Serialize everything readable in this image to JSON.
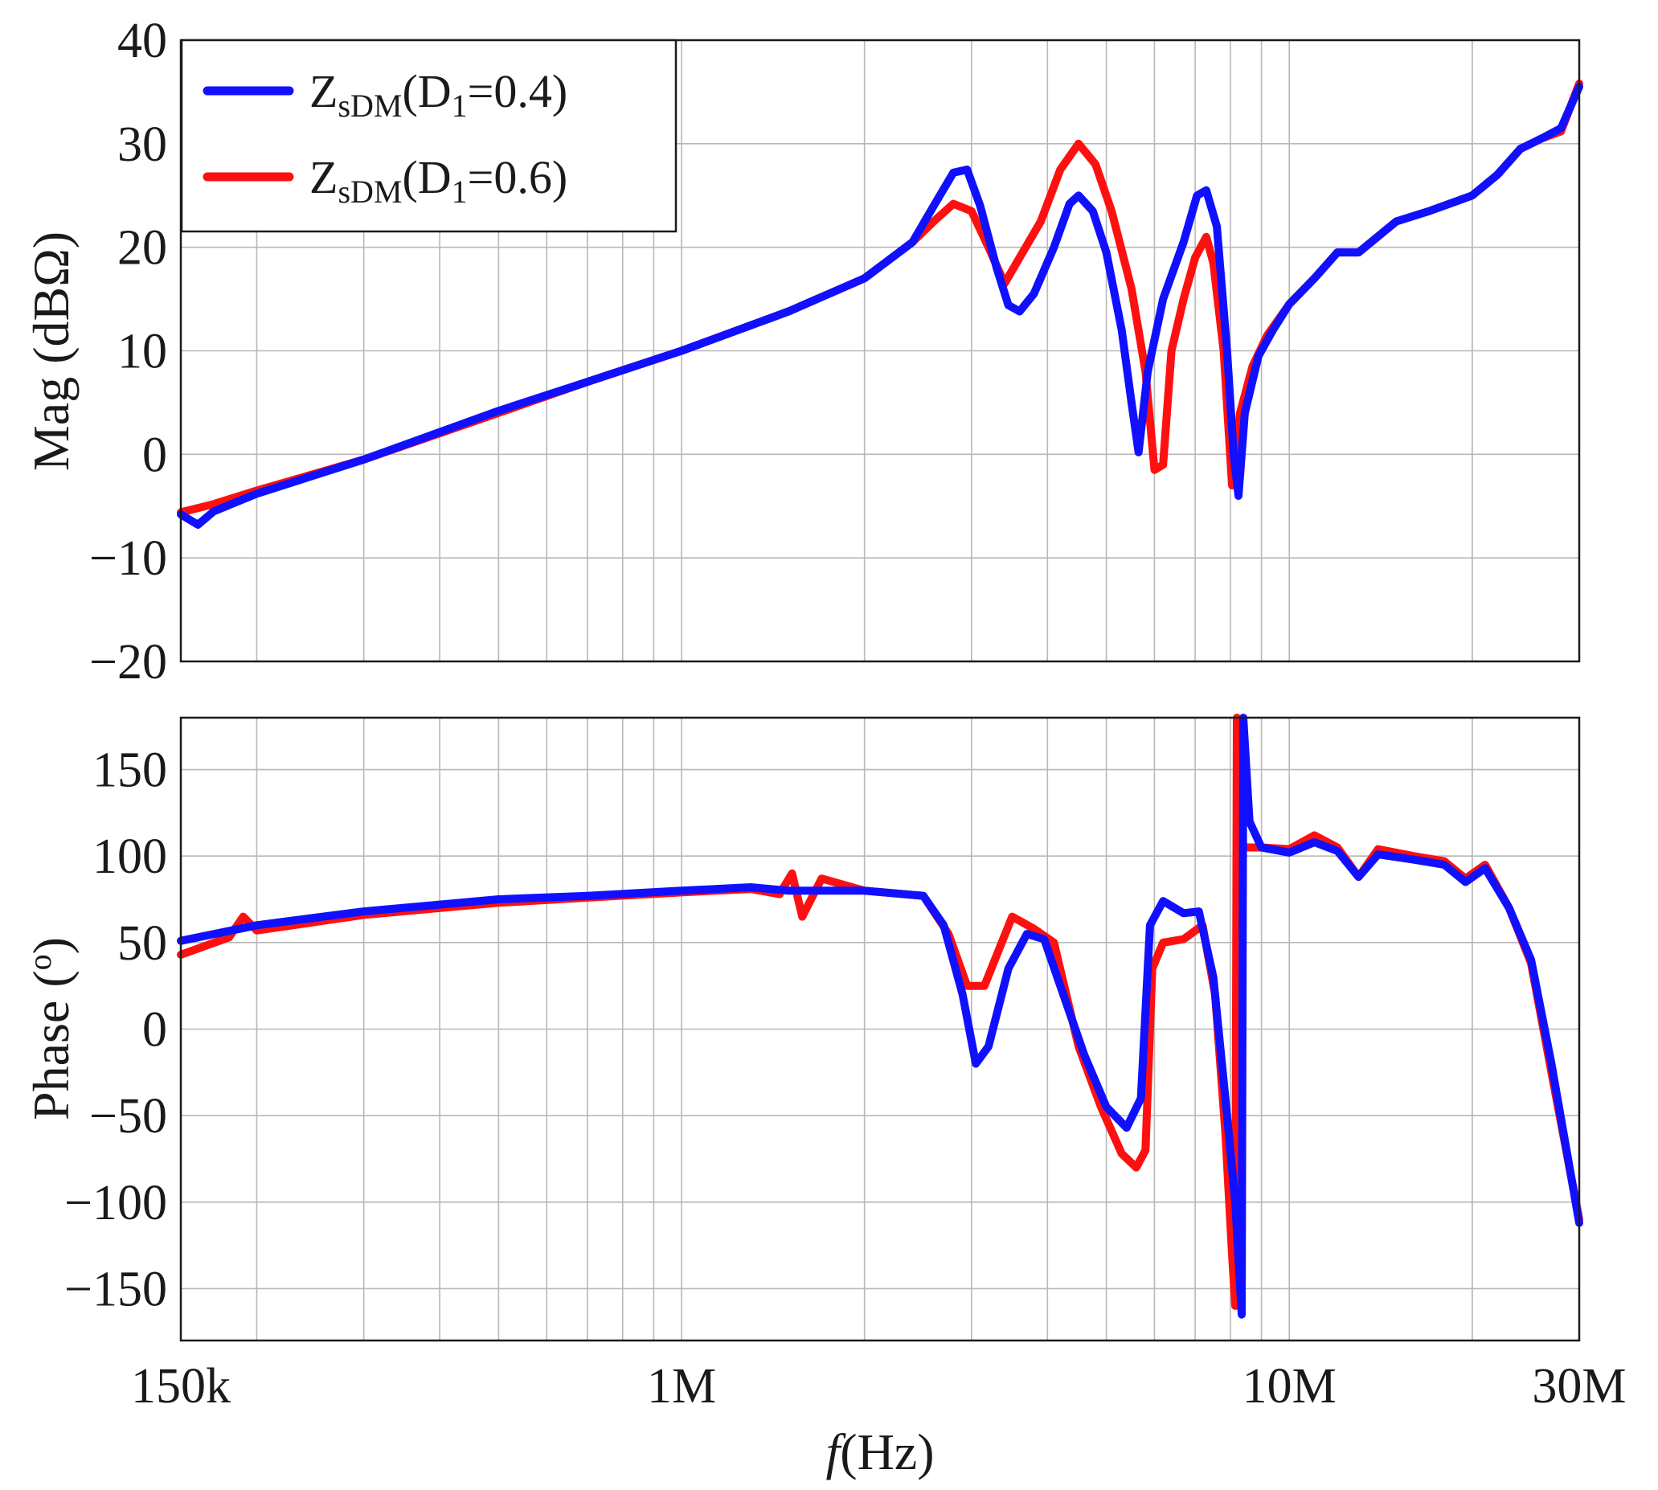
{
  "chart_data": [
    {
      "type": "line",
      "panel": "magnitude",
      "ylabel": "Mag (dBΩ)",
      "xscale": "log",
      "xlim": [
        150000,
        30000000
      ],
      "ylim": [
        -20,
        40
      ],
      "yticks": [
        -20,
        -10,
        0,
        10,
        20,
        30,
        40
      ],
      "ytick_labels": [
        "−20",
        "−10",
        "0",
        "10",
        "20",
        "30",
        "40"
      ],
      "grid": true,
      "legend": {
        "placement": "top-left",
        "entries": [
          {
            "main": "Z",
            "sub": "sDM",
            "open": "(D",
            "sub2": "1",
            "rest": "=0.4)",
            "color": "#1010ff"
          },
          {
            "main": "Z",
            "sub": "sDM",
            "open": "(D",
            "sub2": "1",
            "rest": "=0.6)",
            "color": "#ff1010"
          }
        ]
      },
      "series": [
        {
          "color": "#1010ff",
          "points": [
            [
              150000,
              -5.8
            ],
            [
              160000,
              -6.8
            ],
            [
              170000,
              -5.5
            ],
            [
              200000,
              -3.8
            ],
            [
              300000,
              -0.5
            ],
            [
              500000,
              4.2
            ],
            [
              700000,
              7.0
            ],
            [
              1000000,
              10.0
            ],
            [
              1500000,
              13.8
            ],
            [
              2000000,
              17.0
            ],
            [
              2400000,
              20.5
            ],
            [
              2600000,
              24
            ],
            [
              2800000,
              27.2
            ],
            [
              2950000,
              27.5
            ],
            [
              3100000,
              24
            ],
            [
              3300000,
              18
            ],
            [
              3450000,
              14.4
            ],
            [
              3600000,
              13.8
            ],
            [
              3800000,
              15.5
            ],
            [
              4100000,
              20
            ],
            [
              4350000,
              24.2
            ],
            [
              4500000,
              25.0
            ],
            [
              4750000,
              23.5
            ],
            [
              5000000,
              19.5
            ],
            [
              5300000,
              12
            ],
            [
              5500000,
              5
            ],
            [
              5650000,
              0.2
            ],
            [
              5850000,
              8
            ],
            [
              6200000,
              15
            ],
            [
              6700000,
              20.5
            ],
            [
              7050000,
              25
            ],
            [
              7300000,
              25.5
            ],
            [
              7600000,
              22
            ],
            [
              7900000,
              10
            ],
            [
              8100000,
              0
            ],
            [
              8250000,
              -4
            ],
            [
              8450000,
              4
            ],
            [
              8900000,
              9.5
            ],
            [
              9400000,
              12
            ],
            [
              10000000,
              14.5
            ],
            [
              11000000,
              17
            ],
            [
              12000000,
              19.5
            ],
            [
              13000000,
              19.5
            ],
            [
              15000000,
              22.5
            ],
            [
              17000000,
              23.5
            ],
            [
              20000000,
              25
            ],
            [
              22000000,
              27
            ],
            [
              24000000,
              29.5
            ],
            [
              26000000,
              30.5
            ],
            [
              28000000,
              31.5
            ],
            [
              30000000,
              35.5
            ]
          ]
        },
        {
          "color": "#ff1010",
          "points": [
            [
              150000,
              -5.6
            ],
            [
              170000,
              -4.8
            ],
            [
              200000,
              -3.5
            ],
            [
              300000,
              -0.5
            ],
            [
              500000,
              4.0
            ],
            [
              700000,
              7.0
            ],
            [
              1000000,
              10.0
            ],
            [
              1500000,
              13.8
            ],
            [
              2000000,
              17.0
            ],
            [
              2400000,
              20.5
            ],
            [
              2600000,
              22.5
            ],
            [
              2800000,
              24.2
            ],
            [
              3000000,
              23.5
            ],
            [
              3200000,
              20
            ],
            [
              3400000,
              16.5
            ],
            [
              3600000,
              19
            ],
            [
              3900000,
              22.5
            ],
            [
              4200000,
              27.5
            ],
            [
              4500000,
              30
            ],
            [
              4800000,
              28
            ],
            [
              5100000,
              23.5
            ],
            [
              5500000,
              16
            ],
            [
              5800000,
              8
            ],
            [
              6000000,
              -1.5
            ],
            [
              6200000,
              -1
            ],
            [
              6400000,
              10
            ],
            [
              6700000,
              15
            ],
            [
              7000000,
              19
            ],
            [
              7300000,
              21
            ],
            [
              7500000,
              18.5
            ],
            [
              7800000,
              10
            ],
            [
              8050000,
              -3
            ],
            [
              8300000,
              4
            ],
            [
              8700000,
              8.5
            ],
            [
              9200000,
              11.5
            ],
            [
              10000000,
              14.5
            ],
            [
              11000000,
              17
            ],
            [
              12000000,
              19.5
            ],
            [
              13000000,
              19.5
            ],
            [
              15000000,
              22.5
            ],
            [
              17000000,
              23.5
            ],
            [
              20000000,
              25
            ],
            [
              22000000,
              27
            ],
            [
              24000000,
              29.5
            ],
            [
              26000000,
              30.5
            ],
            [
              28000000,
              31.2
            ],
            [
              30000000,
              35.8
            ]
          ]
        }
      ]
    },
    {
      "type": "line",
      "panel": "phase",
      "ylabel": "Phase (°)",
      "ylabel_main": "Phase (",
      "ylabel_sup": "o",
      "ylabel_close": ")",
      "xlabel_italic": "f",
      "xlabel_rest": "(Hz)",
      "xscale": "log",
      "xlim": [
        150000,
        30000000
      ],
      "ylim": [
        -180,
        180
      ],
      "yticks": [
        -150,
        -100,
        -50,
        0,
        50,
        100,
        150
      ],
      "ytick_labels": [
        "−150",
        "−100",
        "−50",
        "0",
        "50",
        "100",
        "150"
      ],
      "xtick_values": [
        150000,
        1000000,
        10000000,
        30000000
      ],
      "xtick_labels": [
        "150k",
        "1M",
        "10M",
        "30M"
      ],
      "grid": true,
      "series": [
        {
          "color": "#1010ff",
          "points": [
            [
              150000,
              51
            ],
            [
              200000,
              60
            ],
            [
              300000,
              68
            ],
            [
              500000,
              75
            ],
            [
              700000,
              77
            ],
            [
              1000000,
              80
            ],
            [
              1300000,
              82
            ],
            [
              1500000,
              80
            ],
            [
              2000000,
              80
            ],
            [
              2500000,
              77
            ],
            [
              2700000,
              60
            ],
            [
              2900000,
              20
            ],
            [
              3050000,
              -20
            ],
            [
              3200000,
              -10
            ],
            [
              3450000,
              35
            ],
            [
              3700000,
              55
            ],
            [
              3950000,
              52
            ],
            [
              4200000,
              25
            ],
            [
              4600000,
              -15
            ],
            [
              5000000,
              -45
            ],
            [
              5400000,
              -57
            ],
            [
              5700000,
              -40
            ],
            [
              5900000,
              60
            ],
            [
              6200000,
              74
            ],
            [
              6700000,
              67
            ],
            [
              7100000,
              68
            ],
            [
              7500000,
              30
            ],
            [
              7900000,
              -50
            ],
            [
              8150000,
              -100
            ],
            [
              8350000,
              -165
            ],
            [
              8400000,
              180
            ],
            [
              8600000,
              120
            ],
            [
              9000000,
              105
            ],
            [
              10000000,
              102
            ],
            [
              11000000,
              108
            ],
            [
              12000000,
              103
            ],
            [
              13000000,
              88
            ],
            [
              14000000,
              101
            ],
            [
              16000000,
              98
            ],
            [
              18000000,
              95
            ],
            [
              19500000,
              85
            ],
            [
              21000000,
              93
            ],
            [
              23000000,
              70
            ],
            [
              25000000,
              40
            ],
            [
              27000000,
              -20
            ],
            [
              30000000,
              -112
            ]
          ]
        },
        {
          "color": "#ff1010",
          "points": [
            [
              150000,
              43
            ],
            [
              180000,
              53
            ],
            [
              190000,
              65
            ],
            [
              200000,
              57
            ],
            [
              300000,
              66
            ],
            [
              500000,
              73
            ],
            [
              700000,
              76
            ],
            [
              1000000,
              79
            ],
            [
              1300000,
              81
            ],
            [
              1450000,
              78
            ],
            [
              1520000,
              90
            ],
            [
              1580000,
              65
            ],
            [
              1700000,
              87
            ],
            [
              2000000,
              80
            ],
            [
              2500000,
              77
            ],
            [
              2750000,
              55
            ],
            [
              2950000,
              25
            ],
            [
              3150000,
              25
            ],
            [
              3500000,
              65
            ],
            [
              3800000,
              58
            ],
            [
              4100000,
              50
            ],
            [
              4500000,
              -10
            ],
            [
              4900000,
              -45
            ],
            [
              5300000,
              -72
            ],
            [
              5600000,
              -80
            ],
            [
              5800000,
              -70
            ],
            [
              5950000,
              35
            ],
            [
              6200000,
              50
            ],
            [
              6700000,
              52
            ],
            [
              7200000,
              60
            ],
            [
              7550000,
              20
            ],
            [
              7850000,
              -60
            ],
            [
              8050000,
              -130
            ],
            [
              8150000,
              -160
            ],
            [
              8200000,
              180
            ],
            [
              8400000,
              105
            ],
            [
              9000000,
              105
            ],
            [
              10000000,
              104
            ],
            [
              11000000,
              112
            ],
            [
              12000000,
              105
            ],
            [
              13000000,
              88
            ],
            [
              14000000,
              104
            ],
            [
              16000000,
              100
            ],
            [
              18000000,
              97
            ],
            [
              19500000,
              87
            ],
            [
              21000000,
              95
            ],
            [
              23000000,
              70
            ],
            [
              25000000,
              38
            ],
            [
              27000000,
              -25
            ],
            [
              30000000,
              -110
            ]
          ]
        }
      ]
    }
  ]
}
